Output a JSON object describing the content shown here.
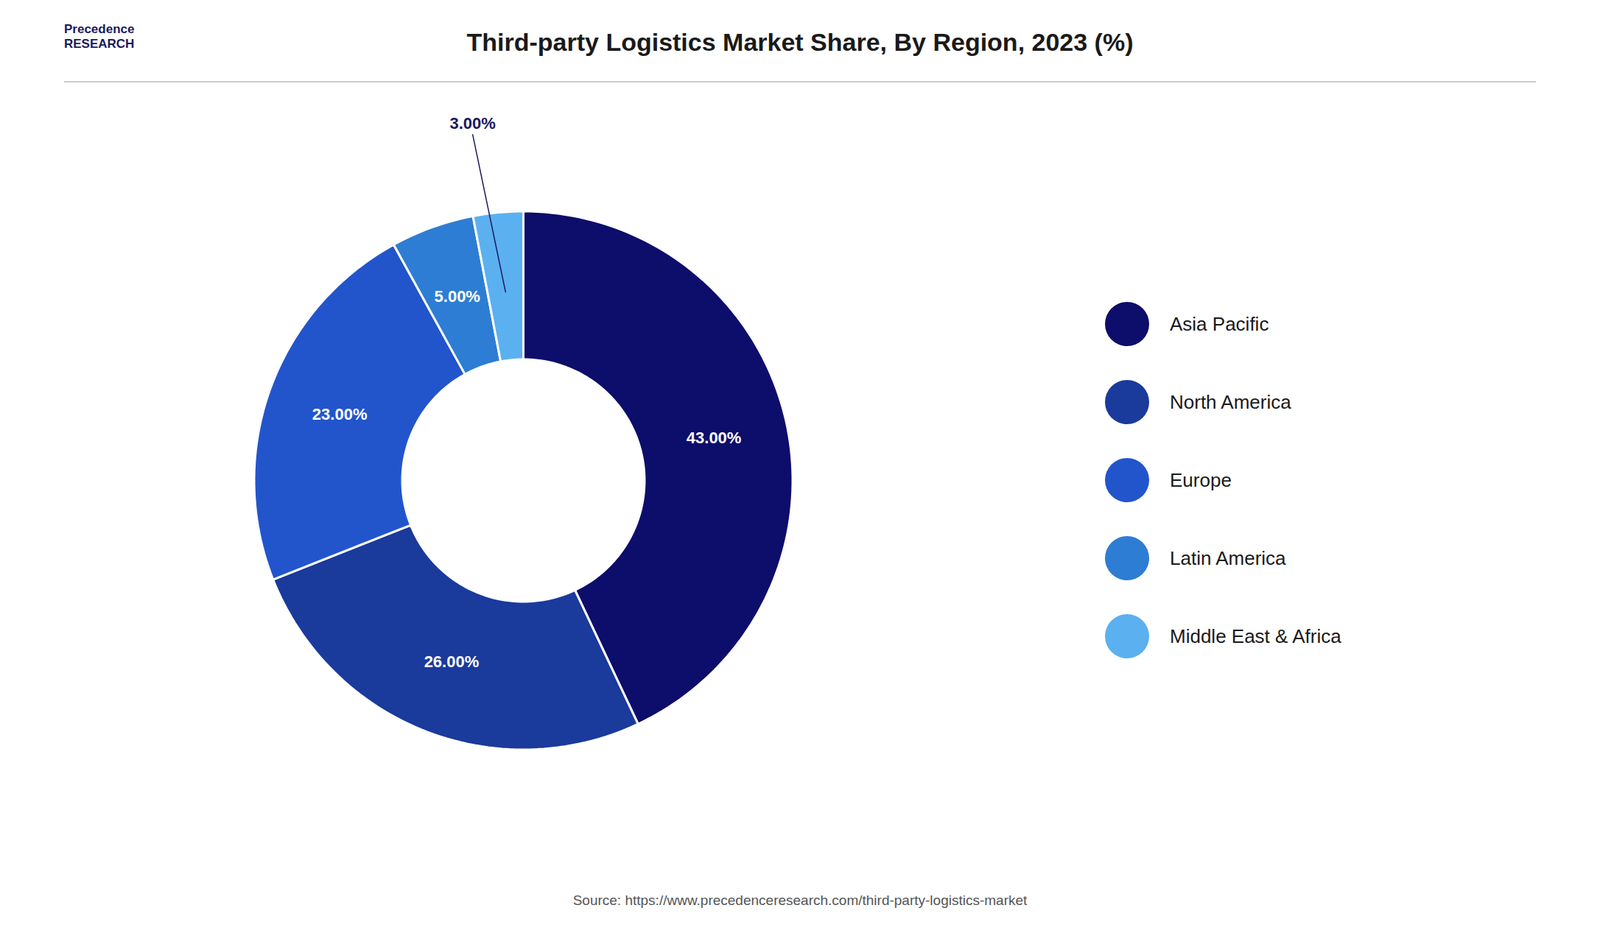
{
  "chart_data": {
    "type": "pie",
    "title": "Third-party Logistics Market  Share, By Region, 2023 (%)",
    "categories": [
      "Asia Pacific",
      "North America",
      "Europe",
      "Latin America",
      "Middle East & Africa"
    ],
    "values": [
      43.0,
      26.0,
      23.0,
      5.0,
      3.0
    ],
    "value_labels": [
      "43.00%",
      "26.00%",
      "23.00%",
      "5.00%",
      "3.00%"
    ],
    "colors": [
      "#0d0d6b",
      "#1a3a9c",
      "#2255cc",
      "#2e7dd4",
      "#5bb0f0"
    ],
    "data_labels": true,
    "legend": "right",
    "annotations": [
      "Precedence\nRESEARCH"
    ],
    "caption": "Source: https://www.precedenceresearch.com/third-party-logistics-market"
  }
}
